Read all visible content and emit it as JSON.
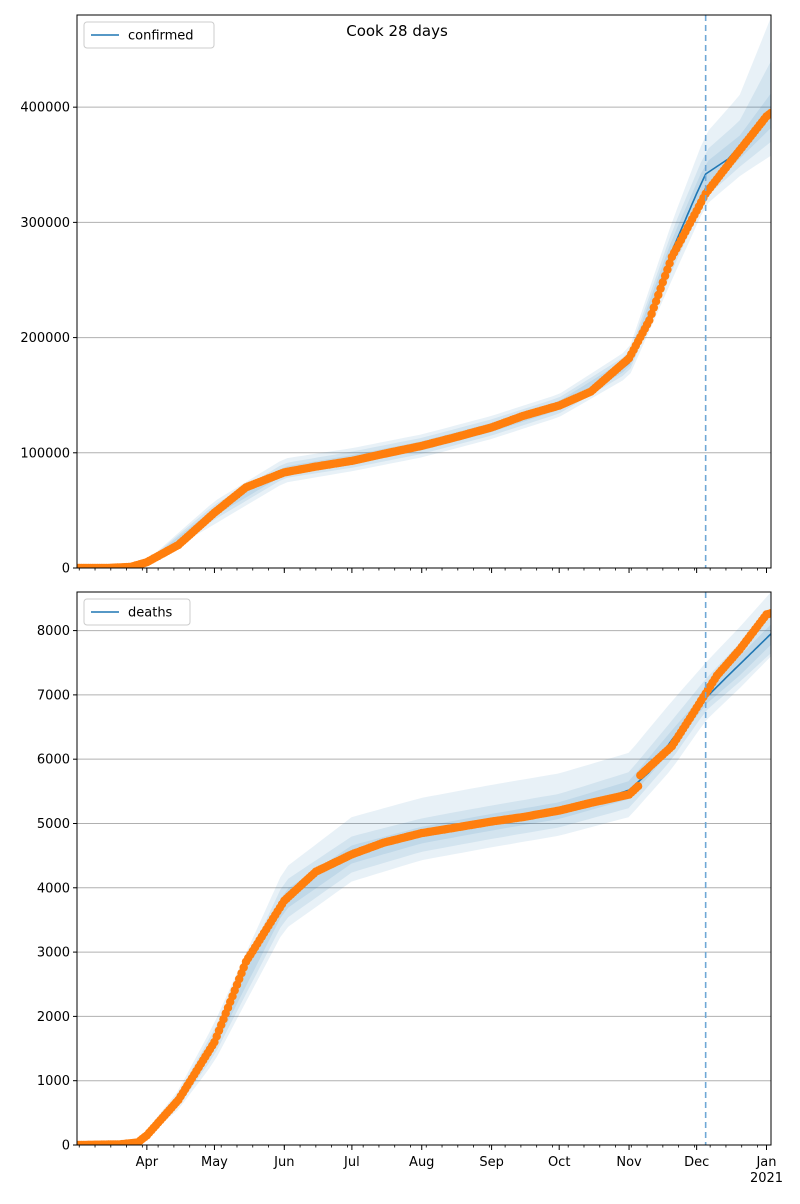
{
  "figure": {
    "title": "Cook 28 days"
  },
  "colors": {
    "model_line": "#1f77b4",
    "observed": "#ff7f0e",
    "band": "#1f77b4",
    "forecast_marker": "#6fa8d6",
    "grid": "#b0b0b0"
  },
  "chart_data": [
    {
      "type": "line",
      "legend": "confirmed",
      "legend_position": "top-left",
      "grid": "y",
      "x_start": "2020-03-01",
      "x_end": "2021-01-03",
      "forecast_start": "2020-12-05",
      "ylim": [
        0,
        480000
      ],
      "yticks": [
        "0",
        "100000",
        "200000",
        "300000",
        "400000"
      ],
      "xticks": [
        {
          "date": "2020-04-01",
          "label": "Apr"
        },
        {
          "date": "2020-05-01",
          "label": "May"
        },
        {
          "date": "2020-06-01",
          "label": "Jun"
        },
        {
          "date": "2020-07-01",
          "label": "Jul"
        },
        {
          "date": "2020-08-01",
          "label": "Aug"
        },
        {
          "date": "2020-09-01",
          "label": "Sep"
        },
        {
          "date": "2020-10-01",
          "label": "Oct"
        },
        {
          "date": "2020-11-01",
          "label": "Nov"
        },
        {
          "date": "2020-12-01",
          "label": "Dec"
        },
        {
          "date": "2021-01-01",
          "label": "Jan"
        }
      ],
      "model_fit": {
        "dates": [
          "2020-03-01",
          "2020-03-15",
          "2020-03-25",
          "2020-04-01",
          "2020-04-15",
          "2020-05-01",
          "2020-05-15",
          "2020-06-01",
          "2020-06-15",
          "2020-07-01",
          "2020-07-15",
          "2020-08-01",
          "2020-08-15",
          "2020-09-01",
          "2020-09-15",
          "2020-10-01",
          "2020-10-15",
          "2020-11-01",
          "2020-11-10",
          "2020-11-20",
          "2020-12-01",
          "2020-12-05",
          "2020-12-15",
          "2021-01-01",
          "2021-01-03"
        ],
        "values": [
          0,
          100,
          1000,
          5000,
          20000,
          48000,
          70000,
          84000,
          89000,
          94000,
          99000,
          106000,
          113000,
          122000,
          132000,
          141000,
          152000,
          178000,
          220000,
          275000,
          325000,
          342000,
          355000,
          393000,
          398000
        ]
      },
      "bands": [
        {
          "level": "inner",
          "dates": [
            "2020-04-01",
            "2020-05-01",
            "2020-06-01",
            "2020-07-01",
            "2020-08-01",
            "2020-09-01",
            "2020-10-01",
            "2020-11-01",
            "2020-11-20",
            "2020-12-05",
            "2020-12-20",
            "2021-01-03"
          ],
          "lower": [
            4500,
            45000,
            81000,
            90000,
            102000,
            118000,
            137000,
            173000,
            265000,
            330000,
            355000,
            382000
          ],
          "upper": [
            5500,
            52000,
            88000,
            98000,
            110000,
            126000,
            145000,
            183000,
            285000,
            352000,
            375000,
            412000
          ]
        },
        {
          "level": "middle",
          "dates": [
            "2020-04-01",
            "2020-05-01",
            "2020-06-01",
            "2020-07-01",
            "2020-08-01",
            "2020-09-01",
            "2020-10-01",
            "2020-11-01",
            "2020-11-20",
            "2020-12-05",
            "2020-12-20",
            "2021-01-03"
          ],
          "lower": [
            4000,
            42000,
            78000,
            87000,
            99000,
            115000,
            134000,
            170000,
            258000,
            322000,
            348000,
            370000
          ],
          "upper": [
            6000,
            55000,
            91000,
            101000,
            113000,
            129000,
            148000,
            186000,
            292000,
            362000,
            388000,
            440000
          ]
        },
        {
          "level": "outer",
          "dates": [
            "2020-04-01",
            "2020-05-01",
            "2020-06-01",
            "2020-07-01",
            "2020-08-01",
            "2020-09-01",
            "2020-10-01",
            "2020-11-01",
            "2020-11-20",
            "2020-12-05",
            "2020-12-20",
            "2021-01-03"
          ],
          "lower": [
            3500,
            38000,
            74000,
            84000,
            96000,
            112000,
            131000,
            166000,
            250000,
            315000,
            340000,
            358000
          ],
          "upper": [
            6500,
            58000,
            95000,
            104000,
            116000,
            132000,
            151000,
            190000,
            300000,
            377000,
            410000,
            478000
          ]
        }
      ],
      "observed": {
        "dates": [
          "2020-03-01",
          "2020-03-15",
          "2020-03-25",
          "2020-04-01",
          "2020-04-15",
          "2020-05-01",
          "2020-05-15",
          "2020-06-01",
          "2020-06-15",
          "2020-07-01",
          "2020-07-15",
          "2020-08-01",
          "2020-08-15",
          "2020-09-01",
          "2020-09-15",
          "2020-10-01",
          "2020-10-15",
          "2020-11-01",
          "2020-11-10",
          "2020-11-20",
          "2020-12-01",
          "2020-12-05",
          "2020-12-15",
          "2021-01-01",
          "2021-01-03"
        ],
        "values": [
          0,
          100,
          1000,
          5000,
          20000,
          48000,
          70000,
          83000,
          88000,
          93000,
          99000,
          106000,
          113000,
          122000,
          132000,
          141000,
          153000,
          182000,
          215000,
          270000,
          310000,
          325000,
          350000,
          392000,
          395000
        ]
      }
    },
    {
      "type": "line",
      "legend": "deaths",
      "legend_position": "top-left",
      "grid": "y",
      "x_start": "2020-03-01",
      "x_end": "2021-01-03",
      "forecast_start": "2020-12-05",
      "ylim": [
        0,
        8600
      ],
      "yticks": [
        "0",
        "1000",
        "2000",
        "3000",
        "4000",
        "5000",
        "6000",
        "7000",
        "8000"
      ],
      "xticks": [
        {
          "date": "2020-04-01",
          "label": "Apr"
        },
        {
          "date": "2020-05-01",
          "label": "May"
        },
        {
          "date": "2020-06-01",
          "label": "Jun"
        },
        {
          "date": "2020-07-01",
          "label": "Jul"
        },
        {
          "date": "2020-08-01",
          "label": "Aug"
        },
        {
          "date": "2020-09-01",
          "label": "Sep"
        },
        {
          "date": "2020-10-01",
          "label": "Oct"
        },
        {
          "date": "2020-11-01",
          "label": "Nov"
        },
        {
          "date": "2020-12-01",
          "label": "Dec"
        },
        {
          "date": "2021-01-01",
          "label": "Jan"
        }
      ],
      "year_label": "2021",
      "model_fit": {
        "dates": [
          "2020-03-01",
          "2020-03-20",
          "2020-03-28",
          "2020-04-01",
          "2020-04-15",
          "2020-05-01",
          "2020-05-15",
          "2020-06-01",
          "2020-06-15",
          "2020-07-01",
          "2020-07-15",
          "2020-08-01",
          "2020-08-15",
          "2020-09-01",
          "2020-09-15",
          "2020-10-01",
          "2020-10-15",
          "2020-11-01",
          "2020-11-10",
          "2020-11-20",
          "2020-12-05",
          "2020-12-15",
          "2021-01-03"
        ],
        "values": [
          0,
          10,
          40,
          150,
          700,
          1600,
          2800,
          3800,
          4250,
          4520,
          4680,
          4820,
          4930,
          5020,
          5100,
          5200,
          5320,
          5520,
          5800,
          6300,
          6950,
          7300,
          7950
        ]
      },
      "bands": [
        {
          "level": "inner",
          "dates": [
            "2020-03-28",
            "2020-04-15",
            "2020-05-01",
            "2020-06-01",
            "2020-07-01",
            "2020-08-01",
            "2020-09-01",
            "2020-10-01",
            "2020-11-01",
            "2020-11-20",
            "2020-12-05",
            "2020-12-20",
            "2021-01-03"
          ],
          "lower": [
            35,
            650,
            1500,
            3650,
            4380,
            4690,
            4890,
            5070,
            5380,
            6150,
            6850,
            7300,
            7780
          ],
          "upper": [
            45,
            750,
            1700,
            3950,
            4660,
            4950,
            5150,
            5330,
            5660,
            6450,
            7050,
            7600,
            8100
          ]
        },
        {
          "level": "middle",
          "dates": [
            "2020-03-28",
            "2020-04-15",
            "2020-05-01",
            "2020-06-01",
            "2020-07-01",
            "2020-08-01",
            "2020-09-01",
            "2020-10-01",
            "2020-11-01",
            "2020-11-20",
            "2020-12-05",
            "2020-12-20",
            "2021-01-03"
          ],
          "lower": [
            30,
            600,
            1400,
            3500,
            4240,
            4560,
            4760,
            4940,
            5240,
            6000,
            6750,
            7200,
            7650
          ],
          "upper": [
            50,
            800,
            1800,
            4100,
            4800,
            5080,
            5280,
            5460,
            5800,
            6600,
            7250,
            7800,
            8300
          ]
        },
        {
          "level": "outer",
          "dates": [
            "2020-03-28",
            "2020-04-15",
            "2020-05-01",
            "2020-06-01",
            "2020-07-01",
            "2020-08-01",
            "2020-09-01",
            "2020-10-01",
            "2020-11-01",
            "2020-11-20",
            "2020-12-05",
            "2020-12-20",
            "2021-01-03"
          ],
          "lower": [
            25,
            550,
            1300,
            3350,
            4100,
            4430,
            4630,
            4810,
            5100,
            5850,
            6600,
            7100,
            7600
          ],
          "upper": [
            55,
            850,
            1900,
            4300,
            5100,
            5400,
            5600,
            5780,
            6100,
            6900,
            7500,
            8050,
            8600
          ]
        }
      ],
      "observed": {
        "dates": [
          "2020-03-01",
          "2020-03-20",
          "2020-03-28",
          "2020-04-01",
          "2020-04-15",
          "2020-05-01",
          "2020-05-15",
          "2020-06-01",
          "2020-06-15",
          "2020-07-01",
          "2020-07-15",
          "2020-08-01",
          "2020-08-15",
          "2020-09-01",
          "2020-09-15",
          "2020-10-01",
          "2020-10-15",
          "2020-11-01",
          "2020-11-05",
          "2020-11-06",
          "2020-11-20",
          "2020-12-01",
          "2020-12-10",
          "2020-12-20",
          "2021-01-01",
          "2021-01-03"
        ],
        "values": [
          0,
          10,
          40,
          150,
          700,
          1600,
          2850,
          3800,
          4250,
          4520,
          4700,
          4850,
          4930,
          5030,
          5100,
          5200,
          5320,
          5450,
          5580,
          5750,
          6200,
          6800,
          7300,
          7700,
          8250,
          8270
        ]
      }
    }
  ]
}
